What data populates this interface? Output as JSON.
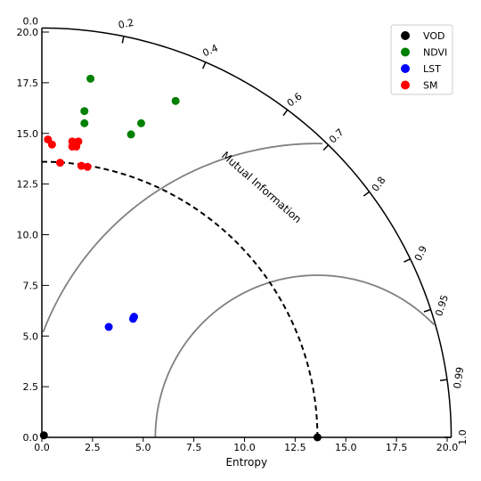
{
  "chart_data": {
    "type": "scatter",
    "subtype": "taylor-diagram",
    "xlabel": "Entropy",
    "arc_label": "Mutual Information",
    "xlim": [
      0.0,
      20.2
    ],
    "ylim": [
      0.0,
      20.7
    ],
    "x_ticks": [
      "0.0",
      "2.5",
      "5.0",
      "7.5",
      "10.0",
      "12.5",
      "15.0",
      "17.5",
      "20.0"
    ],
    "y_ticks": [
      "0.0",
      "2.5",
      "5.0",
      "7.5",
      "10.0",
      "12.5",
      "15.0",
      "17.5",
      "20.0"
    ],
    "y_top_label": "0.0",
    "angle_ticks": [
      "0.2",
      "0.4",
      "0.6",
      "0.7",
      "0.8",
      "0.9",
      "0.95",
      "0.99",
      "1.0"
    ],
    "outer_radius": 20.2,
    "reference_radius": 13.6,
    "arc_circle_center": 13.6,
    "arc_circle_radii": [
      8.0,
      14.5
    ],
    "legend_position": "top-right",
    "series": [
      {
        "name": "VOD",
        "color": "#000000",
        "points": [
          [
            0.1,
            0.1
          ],
          [
            13.6,
            0.0
          ]
        ]
      },
      {
        "name": "NDVI",
        "color": "#008000",
        "points": [
          [
            2.4,
            17.7
          ],
          [
            2.1,
            16.1
          ],
          [
            2.1,
            15.5
          ],
          [
            4.9,
            15.5
          ],
          [
            4.4,
            14.95
          ],
          [
            6.6,
            16.6
          ]
        ]
      },
      {
        "name": "LST",
        "color": "#0000ff",
        "points": [
          [
            3.3,
            5.45
          ],
          [
            4.55,
            5.95
          ],
          [
            4.5,
            5.85
          ]
        ]
      },
      {
        "name": "SM",
        "color": "#ff0000",
        "points": [
          [
            0.3,
            14.7
          ],
          [
            0.5,
            14.45
          ],
          [
            0.9,
            13.55
          ],
          [
            1.5,
            14.6
          ],
          [
            1.5,
            14.35
          ],
          [
            1.7,
            14.35
          ],
          [
            1.8,
            14.6
          ],
          [
            1.95,
            13.4
          ],
          [
            2.25,
            13.35
          ]
        ]
      }
    ]
  }
}
